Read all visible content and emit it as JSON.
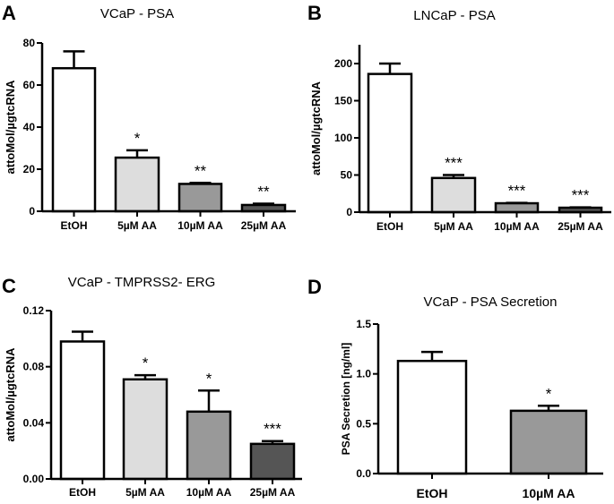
{
  "chart_data": [
    {
      "panel": "A",
      "type": "bar",
      "title": "VCaP - PSA",
      "ylabel": "attoMol/µgtcRNA",
      "xlabel": "",
      "ylim": [
        0,
        80
      ],
      "yticks": [
        "0",
        "20",
        "40",
        "60",
        "80"
      ],
      "categories": [
        "EtOH",
        "5µM AA",
        "10µM AA",
        "25µM AA"
      ],
      "values": [
        68,
        25.5,
        13,
        3
      ],
      "error_upper": [
        76,
        29,
        13.5,
        3.6
      ],
      "significance": [
        "",
        "*",
        "**",
        "**"
      ],
      "colors": [
        "#ffffff",
        "#dddddd",
        "#999999",
        "#555555"
      ]
    },
    {
      "panel": "B",
      "type": "bar",
      "title": "LNCaP - PSA",
      "ylabel": "attoMol/µgtcRNA",
      "xlabel": "",
      "ylim": [
        0,
        225
      ],
      "yticks": [
        "0",
        "50",
        "100",
        "150",
        "200"
      ],
      "categories": [
        "EtOH",
        "5µM AA",
        "10µM AA",
        "25µM AA"
      ],
      "values": [
        186,
        46,
        12,
        6
      ],
      "error_upper": [
        200,
        50,
        12.5,
        6.5
      ],
      "significance": [
        "",
        "***",
        "***",
        "***"
      ],
      "colors": [
        "#ffffff",
        "#dddddd",
        "#999999",
        "#555555"
      ]
    },
    {
      "panel": "C",
      "type": "bar",
      "title": "VCaP - TMPRSS2- ERG",
      "ylabel": "attoMol/µgtcRNA",
      "xlabel": "",
      "ylim": [
        0,
        0.12
      ],
      "yticks": [
        "0.00",
        "0.04",
        "0.08",
        "0.12"
      ],
      "categories": [
        "EtOH",
        "5µM AA",
        "10µM AA",
        "25µM AA"
      ],
      "values": [
        0.098,
        0.071,
        0.048,
        0.025
      ],
      "error_upper": [
        0.105,
        0.074,
        0.063,
        0.027
      ],
      "significance": [
        "",
        "*",
        "*",
        "***"
      ],
      "colors": [
        "#ffffff",
        "#dddddd",
        "#999999",
        "#555555"
      ]
    },
    {
      "panel": "D",
      "type": "bar",
      "title": "VCaP - PSA Secretion",
      "ylabel": "PSA Secretion [ng/ml]",
      "xlabel": "",
      "ylim": [
        0,
        1.5
      ],
      "yticks": [
        "0.0",
        "0.5",
        "1.0",
        "1.5"
      ],
      "categories": [
        "EtOH",
        "10µM AA"
      ],
      "values": [
        1.13,
        0.63
      ],
      "error_upper": [
        1.22,
        0.68
      ],
      "significance": [
        "",
        "*"
      ],
      "colors": [
        "#ffffff",
        "#999999"
      ]
    }
  ]
}
